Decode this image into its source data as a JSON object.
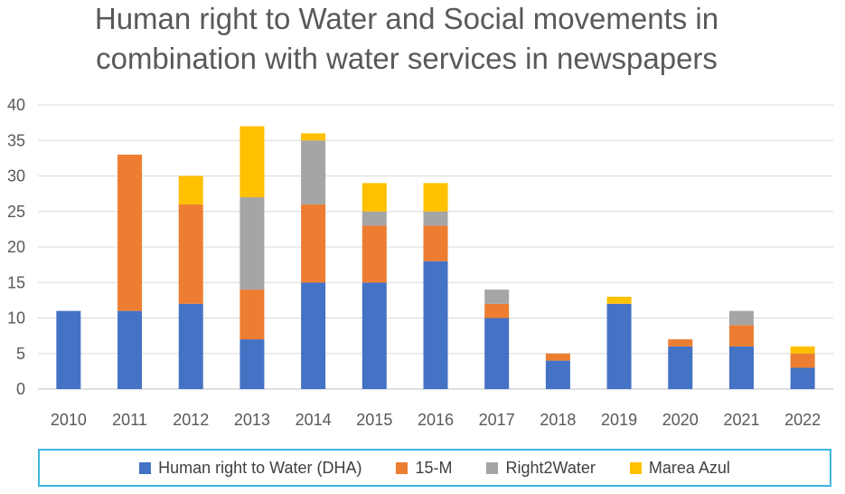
{
  "chart_data": {
    "type": "bar",
    "stacked": true,
    "title_lines": [
      "Human right to Water and Social movements in",
      "combination with water services in newspapers"
    ],
    "categories": [
      "2010",
      "2011",
      "2012",
      "2013",
      "2014",
      "2015",
      "2016",
      "2017",
      "2018",
      "2019",
      "2020",
      "2021",
      "2022"
    ],
    "series": [
      {
        "name": "Human right to Water (DHA)",
        "color": "#4472c4",
        "values": [
          11,
          11,
          12,
          7,
          15,
          15,
          18,
          10,
          4,
          12,
          6,
          6,
          3
        ]
      },
      {
        "name": "15-M",
        "color": "#ed7d31",
        "values": [
          0,
          22,
          14,
          7,
          11,
          8,
          5,
          2,
          1,
          0,
          1,
          3,
          2
        ]
      },
      {
        "name": "Right2Water",
        "color": "#a5a5a5",
        "values": [
          0,
          0,
          0,
          13,
          9,
          2,
          2,
          2,
          0,
          0,
          0,
          2,
          0
        ]
      },
      {
        "name": "Marea Azul",
        "color": "#ffc000",
        "values": [
          0,
          0,
          4,
          10,
          1,
          4,
          4,
          0,
          0,
          1,
          0,
          0,
          1
        ]
      }
    ],
    "ylim": [
      0,
      40
    ],
    "yticks": [
      0,
      5,
      10,
      15,
      20,
      25,
      30,
      35,
      40
    ],
    "xlabel": "",
    "ylabel": "",
    "grid": true,
    "legend_position": "bottom"
  }
}
